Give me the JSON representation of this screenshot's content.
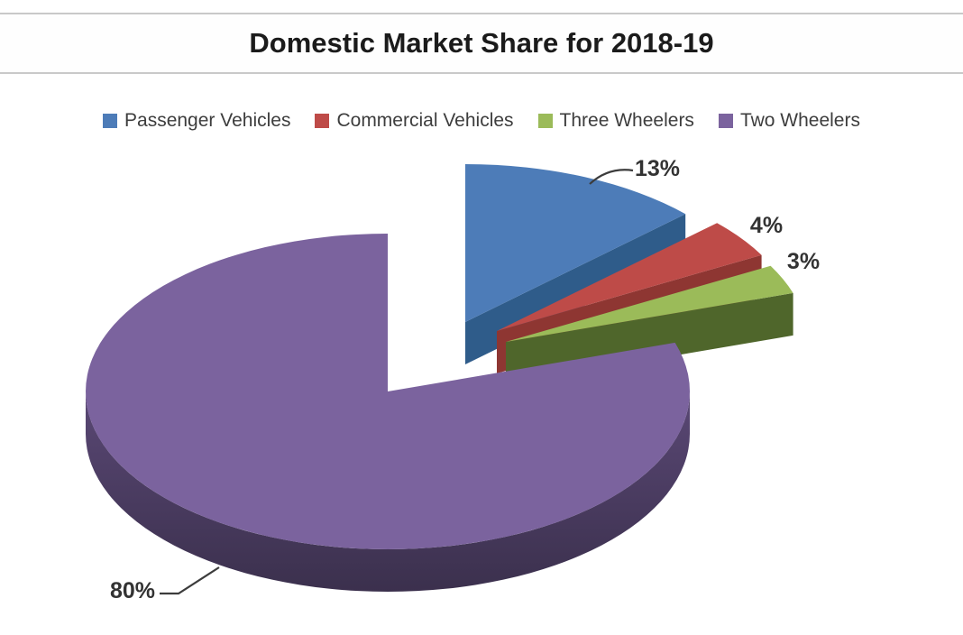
{
  "chart_data": {
    "type": "pie",
    "style": "3d-exploded",
    "title": "Domestic Market Share for 2018-19",
    "legend_position": "top",
    "unit": "%",
    "series": [
      {
        "label": "Passenger Vehicles",
        "value": 13,
        "display": "13%",
        "color": "#4D7CB8",
        "side_color": "#2F5C8A"
      },
      {
        "label": "Commercial Vehicles",
        "value": 4,
        "display": "4%",
        "color": "#BE4B48",
        "side_color": "#8E3632"
      },
      {
        "label": "Three Wheelers",
        "value": 3,
        "display": "3%",
        "color": "#9BBB59",
        "side_color": "#4F662B"
      },
      {
        "label": "Two Wheelers",
        "value": 80,
        "display": "80%",
        "color": "#7B639E",
        "side_color": "#5A4875"
      }
    ]
  }
}
